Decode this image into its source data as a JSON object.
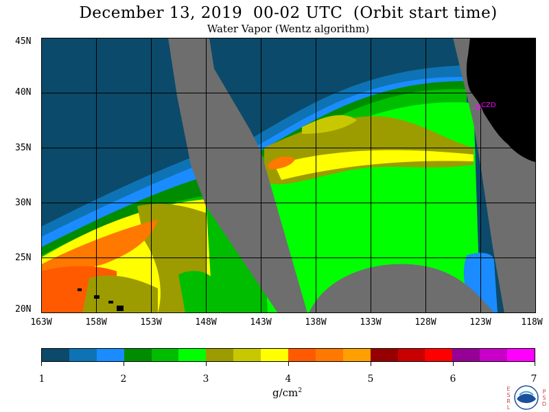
{
  "title": "December 13, 2019  00-02 UTC  (Orbit start time)",
  "subtitle": "Water Vapor (Wentz algorithm)",
  "lat_labels": [
    "45N",
    "40N",
    "35N",
    "30N",
    "25N",
    "20N"
  ],
  "lon_labels": [
    "163W",
    "158W",
    "153W",
    "148W",
    "143W",
    "138W",
    "133W",
    "128W",
    "123W",
    "118W"
  ],
  "station_label": "CZD",
  "colorbar": {
    "tick_labels": [
      "1",
      "2",
      "3",
      "4",
      "5",
      "6",
      "7"
    ],
    "units": "g/cm",
    "units_sup": "2",
    "colors": [
      "#0b4a6a",
      "#0e73b5",
      "#1a8cff",
      "#008c00",
      "#00bd00",
      "#00ff00",
      "#9c9c00",
      "#c8c800",
      "#ffff00",
      "#ff5a00",
      "#ff7800",
      "#ffa000",
      "#960000",
      "#c80000",
      "#ff0000",
      "#960096",
      "#c800c8",
      "#ff00ff"
    ]
  },
  "colors": {
    "no_data": "#6e6e6e",
    "land": "#000000",
    "station": "#ff00ff"
  },
  "logo": {
    "left_letters": [
      "E",
      "S",
      "R",
      "L"
    ],
    "right_letters": [
      "P",
      "S",
      "D"
    ],
    "text": "NOAA"
  }
}
